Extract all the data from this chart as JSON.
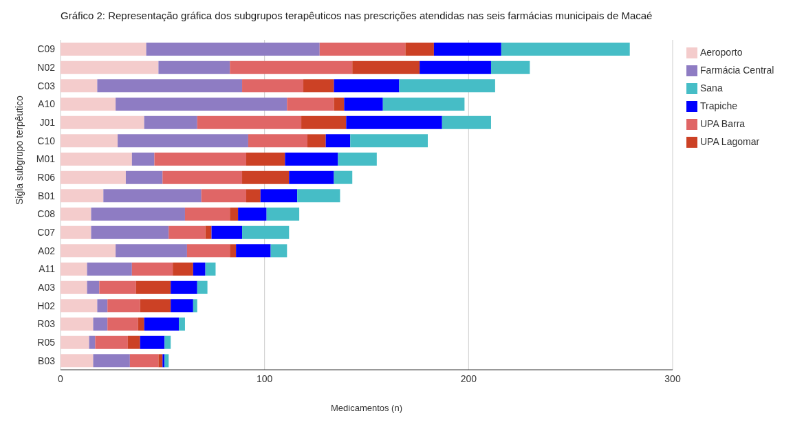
{
  "chart_data": {
    "type": "bar",
    "orientation": "horizontal",
    "stacked": true,
    "title": "Gráfico 2: Representação gráfica dos subgrupos terapêuticos nas prescrições atendidas nas seis farmácias municipais de Macaé",
    "xlabel": "Medicamentos (n)",
    "ylabel": "Sigla subgrupo terpêutico",
    "categories": [
      "C09",
      "N02",
      "C03",
      "A10",
      "J01",
      "C10",
      "M01",
      "R06",
      "B01",
      "C08",
      "C07",
      "A02",
      "A11",
      "A03",
      "H02",
      "R03",
      "R05",
      "B03"
    ],
    "series": [
      {
        "name": "Aeroporto",
        "color": "#f4cccc",
        "values": [
          42,
          48,
          18,
          27,
          41,
          28,
          35,
          32,
          21,
          15,
          15,
          27,
          13,
          13,
          18,
          16,
          14,
          16
        ]
      },
      {
        "name": "Farmácia Central",
        "color": "#8e7cc3",
        "values": [
          85,
          35,
          71,
          84,
          26,
          64,
          11,
          18,
          48,
          46,
          38,
          35,
          22,
          6,
          5,
          7,
          3,
          18
        ]
      },
      {
        "name": "UPA Barra",
        "color": "#e06666",
        "values": [
          42,
          60,
          30,
          23,
          51,
          29,
          45,
          39,
          22,
          22,
          18,
          21,
          20,
          18,
          16,
          15,
          16,
          14
        ]
      },
      {
        "name": "UPA Lagomar",
        "color": "#cc4125",
        "values": [
          14,
          33,
          15,
          5,
          22,
          9,
          19,
          23,
          7,
          4,
          3,
          3,
          10,
          17,
          15,
          3,
          6,
          2
        ]
      },
      {
        "name": "Trapiche",
        "color": "#0000ff",
        "values": [
          33,
          35,
          32,
          19,
          47,
          12,
          26,
          22,
          18,
          14,
          15,
          17,
          6,
          13,
          11,
          17,
          12,
          1
        ]
      },
      {
        "name": "Sana",
        "color": "#46bdc6",
        "values": [
          63,
          19,
          47,
          40,
          24,
          38,
          19,
          9,
          21,
          16,
          23,
          8,
          5,
          5,
          2,
          3,
          3,
          2
        ]
      }
    ],
    "xlim": [
      0,
      300
    ],
    "xticks": [
      0,
      100,
      200,
      300
    ],
    "grid": "x",
    "legend": "top right"
  }
}
